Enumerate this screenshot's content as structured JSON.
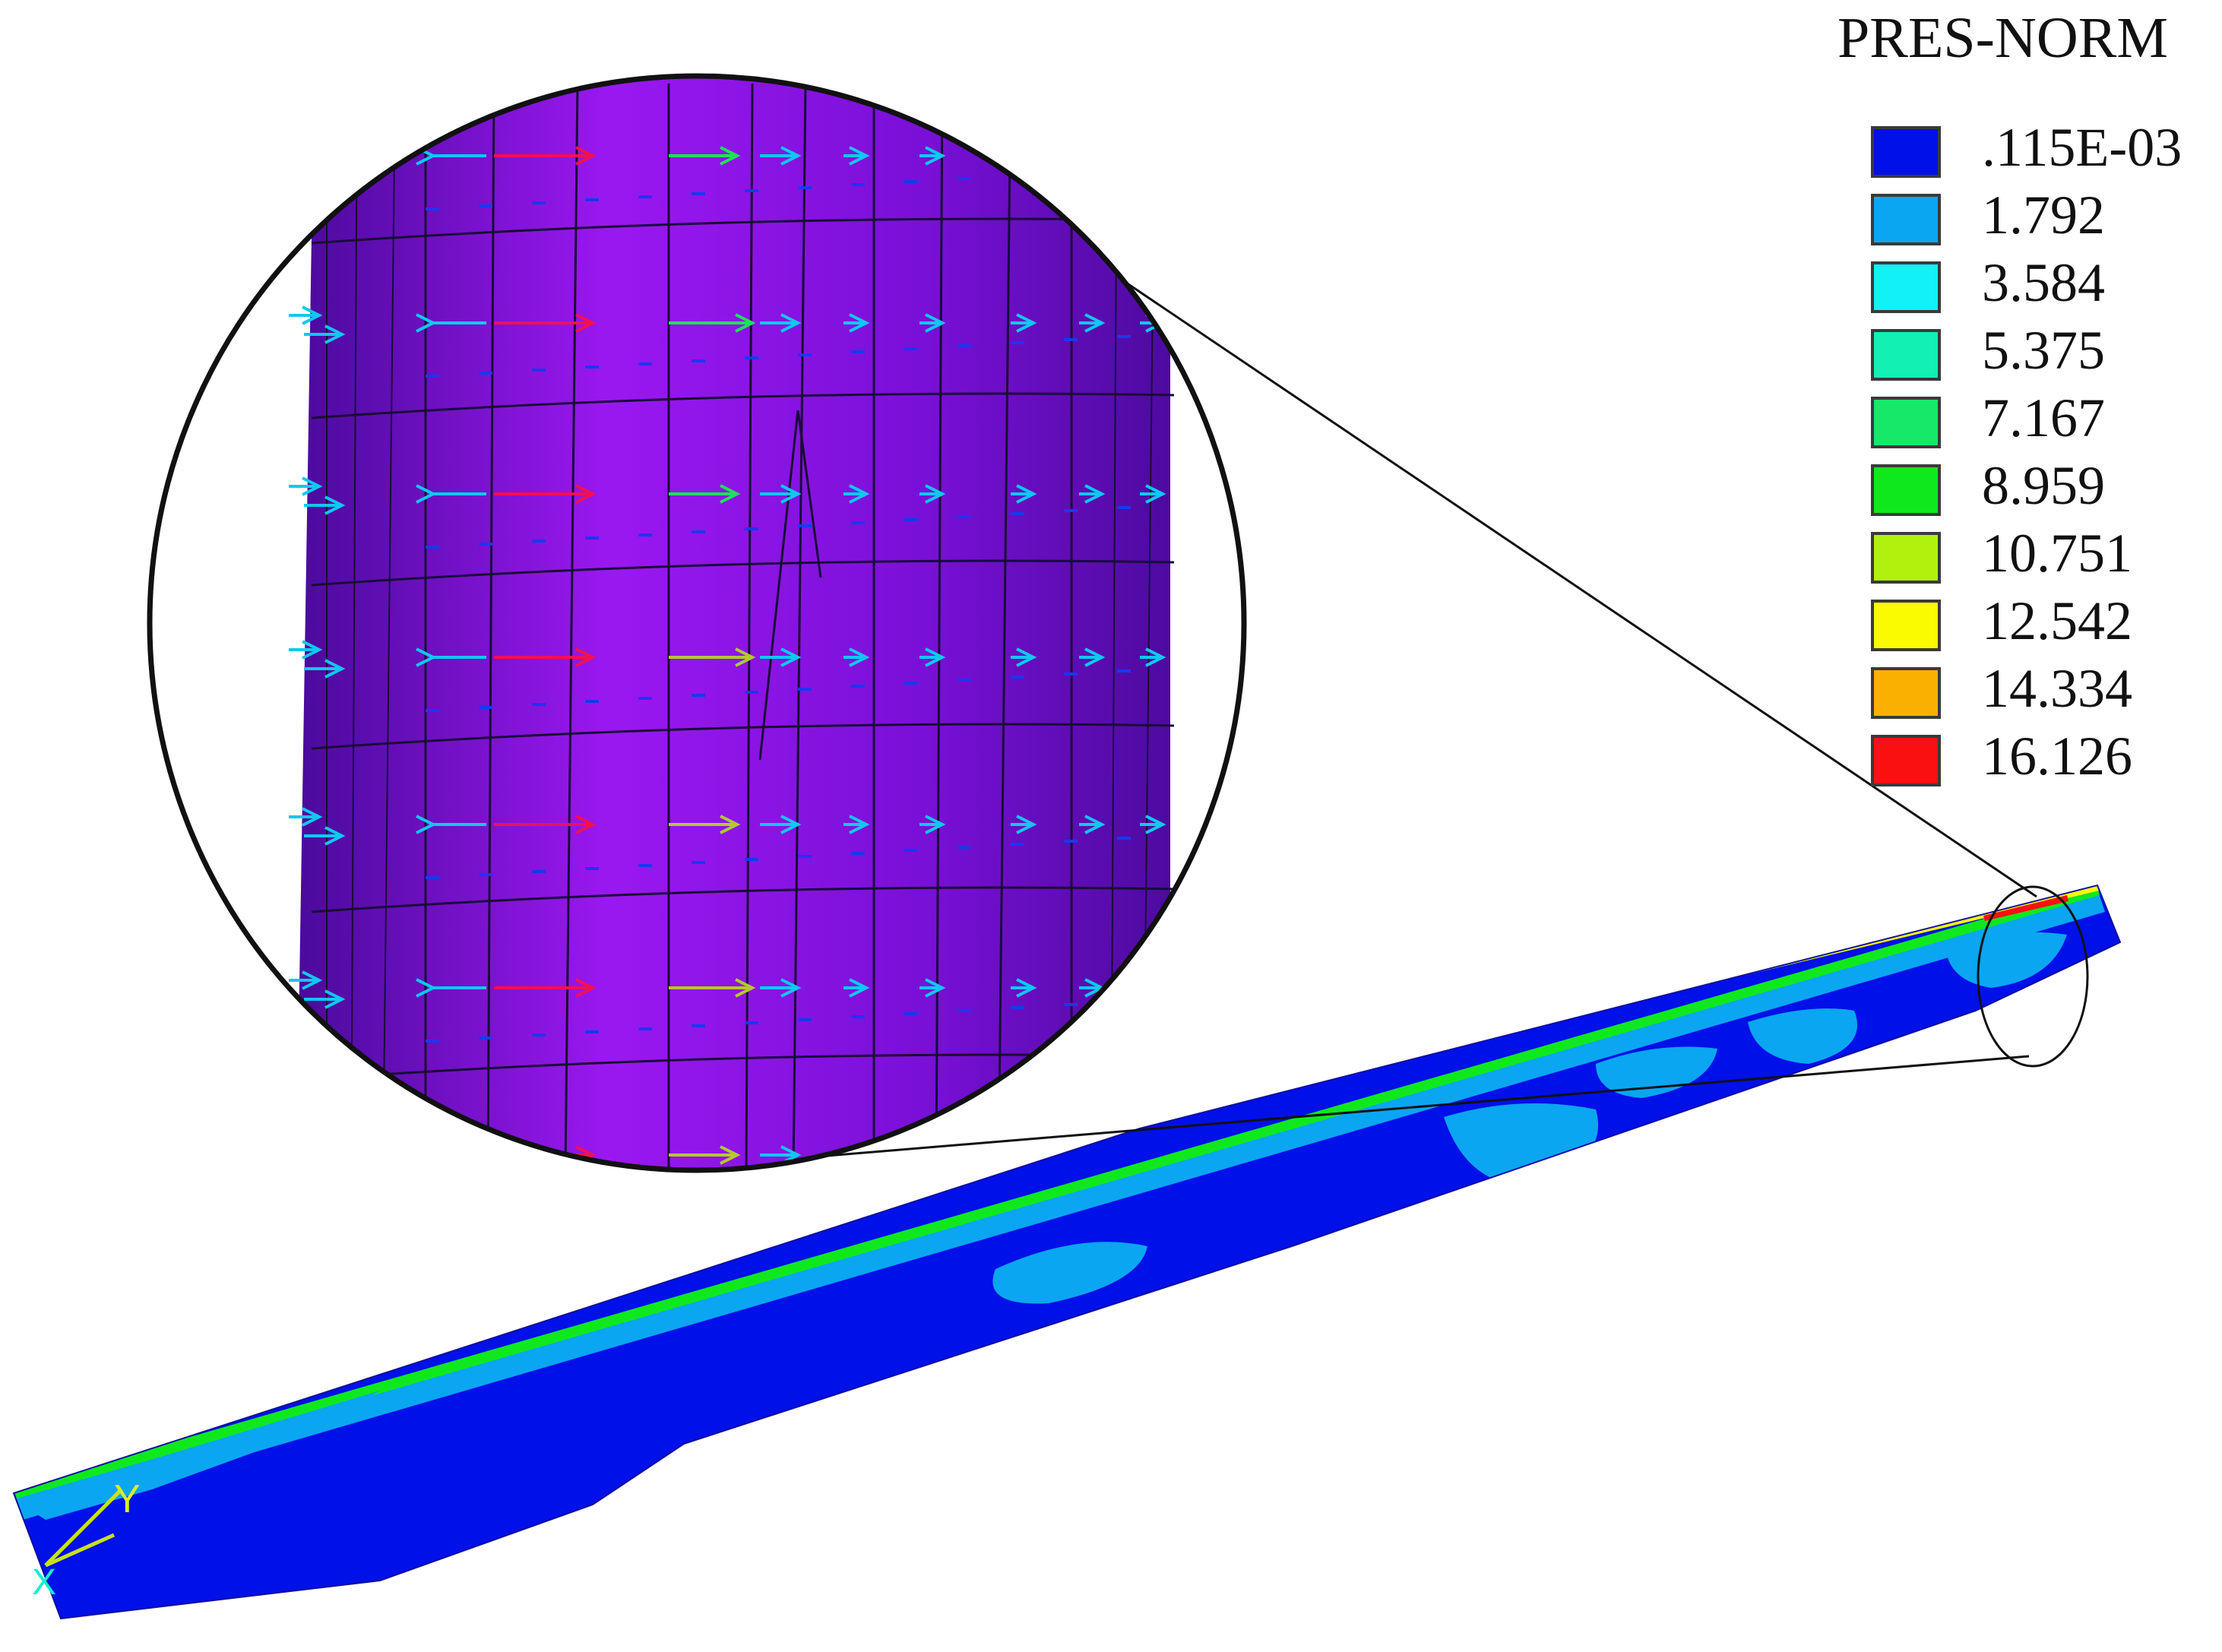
{
  "legend": {
    "title": "PRES-NORM",
    "items": [
      {
        "label": ".115E-03",
        "color": "#0010e8"
      },
      {
        "label": "1.792",
        "color": "#0aa6f2"
      },
      {
        "label": "3.584",
        "color": "#10f2f6"
      },
      {
        "label": "5.375",
        "color": "#12f0b4"
      },
      {
        "label": "7.167",
        "color": "#16e86a"
      },
      {
        "label": "8.959",
        "color": "#10e81e"
      },
      {
        "label": "10.751",
        "color": "#b0f20e"
      },
      {
        "label": "12.542",
        "color": "#fafa00"
      },
      {
        "label": "14.334",
        "color": "#fab000"
      },
      {
        "label": "16.126",
        "color": "#fa1010"
      }
    ]
  },
  "colors": {
    "blade_base": "#0010e8",
    "blade_light": "#0aa6f2",
    "blade_cyan": "#10f2f6",
    "blade_green": "#10e81e",
    "blade_yellow": "#fafa00",
    "blade_red": "#fa1010",
    "zoom_surface": "#8a10e8",
    "zoom_surface_dark": "#4a0a9c",
    "mesh_line": "#1a0c36",
    "arrow_red": "#f21050",
    "arrow_cyan": "#10c8f0",
    "arrow_green": "#20e05a",
    "arrow_olive": "#b4c830",
    "arrow_blue": "#1838f0"
  },
  "axis_triad": {
    "y_label": "Y",
    "x_label": "X"
  }
}
